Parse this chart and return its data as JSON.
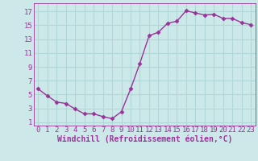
{
  "x": [
    0,
    1,
    2,
    3,
    4,
    5,
    6,
    7,
    8,
    9,
    10,
    11,
    12,
    13,
    14,
    15,
    16,
    17,
    18,
    19,
    20,
    21,
    22,
    23
  ],
  "y": [
    5.8,
    4.8,
    3.9,
    3.7,
    2.9,
    2.2,
    2.2,
    1.8,
    1.5,
    2.5,
    5.8,
    9.5,
    13.5,
    14.0,
    15.3,
    15.6,
    17.1,
    16.8,
    16.5,
    16.6,
    16.0,
    16.0,
    15.4,
    15.1
  ],
  "line_color": "#993399",
  "marker": "D",
  "xlabel": "Windchill (Refroidissement éolien,°C)",
  "ylabel_ticks": [
    1,
    3,
    5,
    7,
    9,
    11,
    13,
    15,
    17
  ],
  "xticks": [
    0,
    1,
    2,
    3,
    4,
    5,
    6,
    7,
    8,
    9,
    10,
    11,
    12,
    13,
    14,
    15,
    16,
    17,
    18,
    19,
    20,
    21,
    22,
    23
  ],
  "xlim": [
    -0.5,
    23.5
  ],
  "ylim": [
    0.5,
    18.2
  ],
  "bg_color": "#cce8e8",
  "grid_color": "#b0d8d8",
  "tick_label_size": 6.5,
  "xlabel_size": 7,
  "marker_size": 2.5,
  "line_width": 1.0
}
